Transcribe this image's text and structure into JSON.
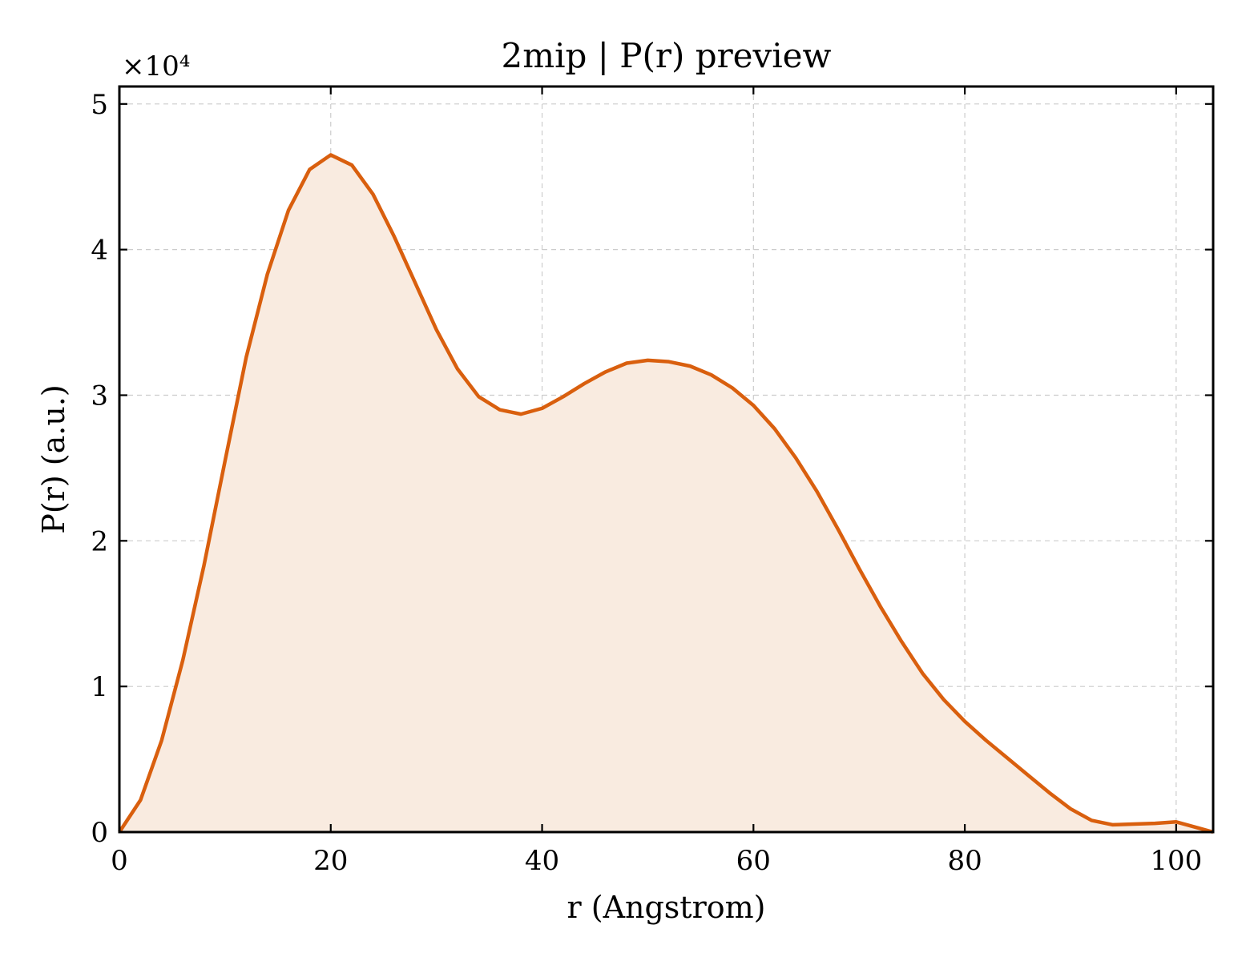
{
  "chart_data": {
    "type": "area",
    "title": "2mip | P(r) preview",
    "xlabel": "r (Angstrom)",
    "ylabel": "P(r) (a.u.)",
    "y_multiplier_label": "×10⁴",
    "xlim": [
      0,
      103.5
    ],
    "ylim": [
      0,
      5.12
    ],
    "xticks": [
      0,
      20,
      40,
      60,
      80,
      100
    ],
    "yticks": [
      0,
      1,
      2,
      3,
      4,
      5
    ],
    "grid": true,
    "line_color": "#d95f0e",
    "fill_color": "#f9ebe0",
    "series": [
      {
        "x": [
          0,
          2,
          4,
          6,
          8,
          10,
          12,
          14,
          16,
          18,
          20,
          22,
          24,
          26,
          28,
          30,
          32,
          34,
          36,
          38,
          40,
          42,
          44,
          46,
          48,
          50,
          52,
          54,
          56,
          58,
          60,
          62,
          64,
          66,
          68,
          70,
          72,
          74,
          76,
          78,
          80,
          82,
          84,
          86,
          88,
          90,
          92,
          94,
          96,
          98,
          100,
          102,
          103.5
        ],
        "y": [
          0,
          0.22,
          0.63,
          1.18,
          1.83,
          2.55,
          3.26,
          3.83,
          4.27,
          4.55,
          4.65,
          4.58,
          4.38,
          4.09,
          3.77,
          3.45,
          3.18,
          2.99,
          2.9,
          2.87,
          2.91,
          2.99,
          3.08,
          3.16,
          3.22,
          3.24,
          3.23,
          3.2,
          3.14,
          3.05,
          2.93,
          2.77,
          2.57,
          2.34,
          2.08,
          1.81,
          1.55,
          1.31,
          1.09,
          0.91,
          0.76,
          0.63,
          0.51,
          0.39,
          0.27,
          0.16,
          0.08,
          0.05,
          0.055,
          0.06,
          0.07,
          0.03,
          0
        ]
      }
    ]
  }
}
